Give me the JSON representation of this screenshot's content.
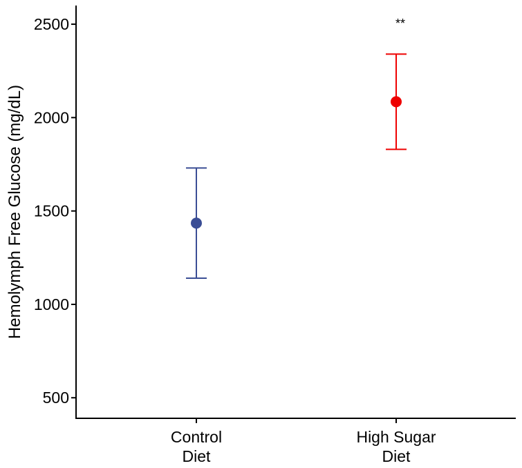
{
  "chart_data": {
    "type": "scatter",
    "title": "",
    "xlabel": "",
    "ylabel": "Hemolymph Free Glucose (mg/dL)",
    "ylim": [
      390,
      2600
    ],
    "yticks": [
      500,
      1000,
      1500,
      2000,
      2500
    ],
    "ytick_labels": [
      "500",
      "1000",
      "1500",
      "2000",
      "2500"
    ],
    "grid": false,
    "legend": "none",
    "categories": [
      {
        "line1": "Control",
        "line2": "Diet"
      },
      {
        "line1": "High Sugar",
        "line2": "Diet"
      }
    ],
    "points": [
      {
        "category": 0,
        "mean": 1435,
        "lower": 1140,
        "upper": 1730,
        "color": "#3a4d95",
        "annotation": ""
      },
      {
        "category": 1,
        "mean": 2085,
        "lower": 1830,
        "upper": 2340,
        "color": "#ee0000",
        "annotation": "**"
      }
    ]
  }
}
